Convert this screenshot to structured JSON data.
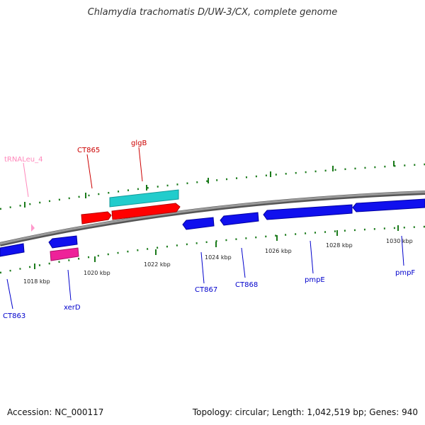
{
  "title": "Chlamydia trachomatis D/UW-3/CX, complete genome",
  "footer": {
    "accession": "Accession: NC_000117",
    "summary": "Topology: circular; Length: 1,042,519 bp; Genes: 940"
  },
  "colors": {
    "backbone": "#888888",
    "tick": "#1a7a1a",
    "forward_gene": "#ff0000",
    "forward_gene_dark": "#b30000",
    "reverse_gene": "#1010ee",
    "reverse_gene_dark": "#0000a0",
    "cyan_feature": "#22cccc",
    "pink_feature": "#ee2299",
    "trna": "#ff99cc",
    "label_red": "#cc0000",
    "label_blue": "#0000cc",
    "label_pink": "#ff88bb"
  },
  "ticks": [
    {
      "label": "1018 kbp"
    },
    {
      "label": "1020 kbp"
    },
    {
      "label": "1022 kbp"
    },
    {
      "label": "1024 kbp"
    },
    {
      "label": "1026 kbp"
    },
    {
      "label": "1028 kbp"
    },
    {
      "label": "1030 kbp"
    }
  ],
  "genes": [
    {
      "name": "CT865",
      "strand": "forward"
    },
    {
      "name": "glgB",
      "strand": "forward"
    },
    {
      "name": "tRNALeu_4",
      "strand": "forward"
    },
    {
      "name": "CT863",
      "strand": "reverse"
    },
    {
      "name": "xerD",
      "strand": "reverse"
    },
    {
      "name": "CT867",
      "strand": "reverse"
    },
    {
      "name": "CT868",
      "strand": "reverse"
    },
    {
      "name": "pmpE",
      "strand": "reverse"
    },
    {
      "name": "pmpF",
      "strand": "reverse"
    }
  ]
}
